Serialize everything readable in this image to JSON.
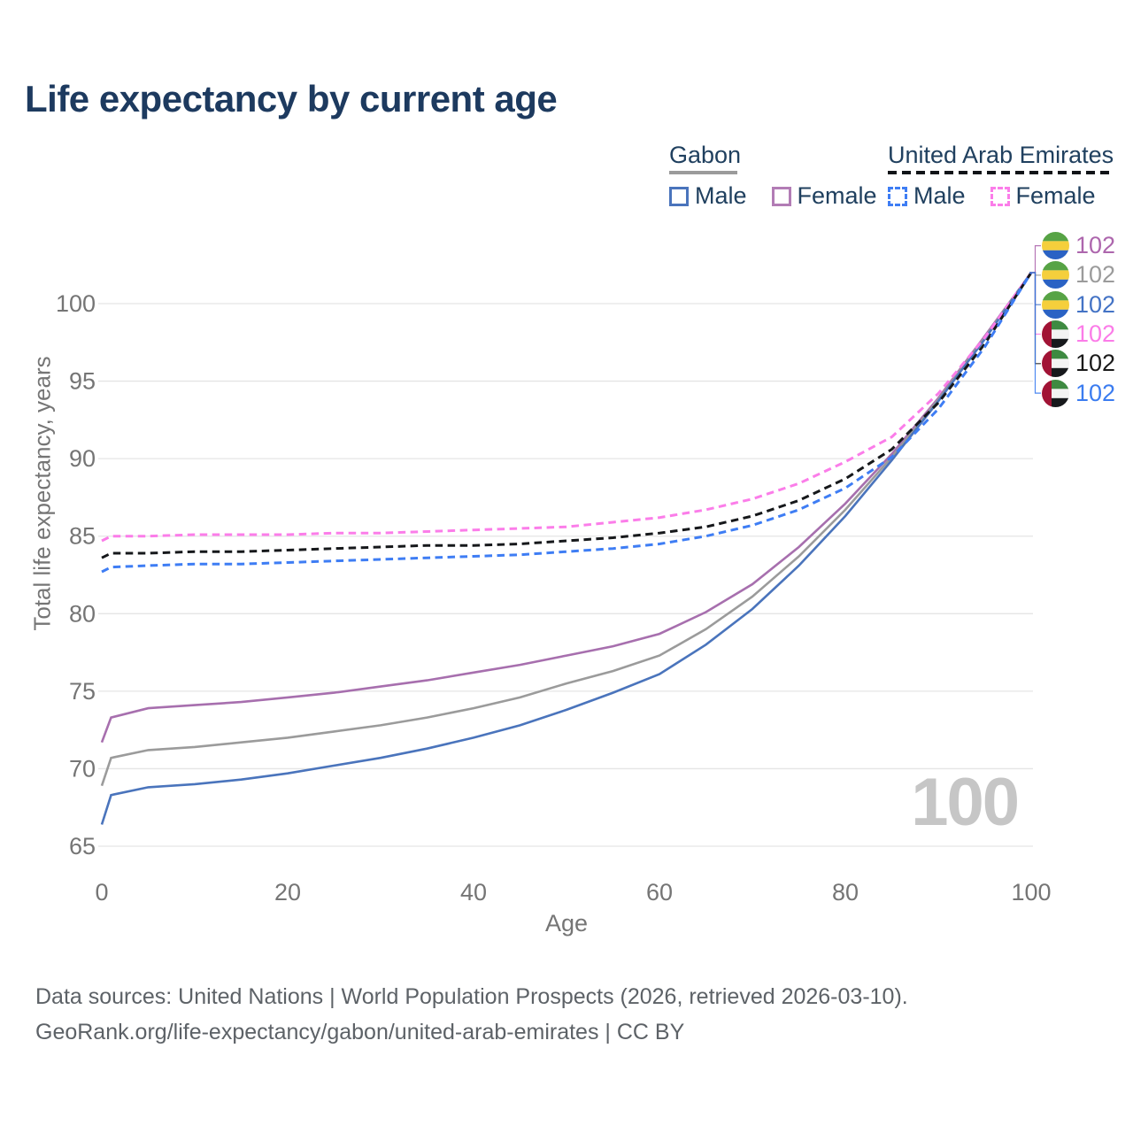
{
  "title": "Life expectancy by current age",
  "legend": {
    "groups": [
      {
        "title": "Gabon",
        "line_style": "solid",
        "underline_color": "#9b9b9b",
        "items": [
          {
            "label": "Male",
            "color": "#4a74bc",
            "style": "solid"
          },
          {
            "label": "Female",
            "color": "#b27cb5",
            "style": "solid"
          }
        ]
      },
      {
        "title": "United Arab Emirates",
        "line_style": "dashed",
        "underline_color": "#111418",
        "items": [
          {
            "label": "Male",
            "color": "#3e7df4",
            "style": "dashed"
          },
          {
            "label": "Female",
            "color": "#fb7de9",
            "style": "dashed"
          }
        ]
      }
    ]
  },
  "watermark": {
    "value": "100"
  },
  "right_labels": [
    {
      "series": "gabon-female",
      "flag": "gabon",
      "value": "102",
      "color": "#ad66ad"
    },
    {
      "series": "gabon-total",
      "flag": "gabon",
      "value": "102",
      "color": "#9b9b9b"
    },
    {
      "series": "gabon-male",
      "flag": "gabon",
      "value": "102",
      "color": "#4473c5"
    },
    {
      "series": "uae-female",
      "flag": "uae",
      "value": "102",
      "color": "#fb7ce8"
    },
    {
      "series": "uae-total",
      "flag": "uae",
      "value": "102",
      "color": "#1a1a1a"
    },
    {
      "series": "uae-male",
      "flag": "uae",
      "value": "102",
      "color": "#3b7cf0"
    }
  ],
  "flag_colors": {
    "gabon": {
      "green": "#57a345",
      "yellow": "#f5cf3c",
      "blue": "#2a62c4"
    },
    "uae": {
      "red": "#a11335",
      "green": "#3e8a41",
      "white": "#f3f3f3",
      "black": "#17191c"
    }
  },
  "grid_color": "#e5e5e5",
  "axis_text_color": "#757575",
  "chart_data": {
    "type": "line",
    "title": "Life expectancy by current age",
    "xlabel": "Age",
    "ylabel": "Total life expectancy, years",
    "x_ticks": [
      0,
      20,
      40,
      60,
      80,
      100
    ],
    "y_ticks": [
      65,
      70,
      75,
      80,
      85,
      90,
      95,
      100
    ],
    "xlim": [
      0,
      100
    ],
    "ylim": [
      64.5,
      103
    ],
    "grid": "horizontal-only",
    "legend_position": "top-right",
    "x": [
      0,
      1,
      5,
      10,
      15,
      20,
      25,
      30,
      35,
      40,
      45,
      50,
      55,
      60,
      65,
      70,
      75,
      80,
      85,
      90,
      95,
      100
    ],
    "series": [
      {
        "id": "gabon-female",
        "name": "Gabon Female",
        "country": "Gabon",
        "sex": "Female",
        "style": "solid",
        "color": "#a76fae",
        "width": 2.6,
        "end_value": 102,
        "values": [
          71.7,
          73.3,
          73.9,
          74.1,
          74.3,
          74.6,
          74.9,
          75.3,
          75.7,
          76.2,
          76.7,
          77.3,
          77.9,
          78.7,
          80.1,
          81.9,
          84.3,
          87.1,
          90.3,
          93.9,
          97.9,
          102
        ]
      },
      {
        "id": "gabon-total",
        "name": "Gabon Total",
        "country": "Gabon",
        "sex": "Both",
        "style": "solid",
        "color": "#9b9b9b",
        "width": 2.6,
        "end_value": 102,
        "values": [
          68.9,
          70.7,
          71.2,
          71.4,
          71.7,
          72.0,
          72.4,
          72.8,
          73.3,
          73.9,
          74.6,
          75.5,
          76.3,
          77.3,
          79.0,
          81.1,
          83.7,
          86.7,
          90.1,
          93.8,
          97.8,
          102
        ]
      },
      {
        "id": "gabon-male",
        "name": "Gabon Male",
        "country": "Gabon",
        "sex": "Male",
        "style": "solid",
        "color": "#4a74bc",
        "width": 2.6,
        "end_value": 102,
        "values": [
          66.4,
          68.3,
          68.8,
          69.0,
          69.3,
          69.7,
          70.2,
          70.7,
          71.3,
          72.0,
          72.8,
          73.8,
          74.9,
          76.1,
          78.0,
          80.3,
          83.1,
          86.3,
          89.9,
          93.7,
          97.7,
          102
        ]
      },
      {
        "id": "uae-female",
        "name": "United Arab Emirates Female",
        "country": "United Arab Emirates",
        "sex": "Female",
        "style": "dashed",
        "color": "#fb7de9",
        "width": 3,
        "end_value": 102,
        "values": [
          84.7,
          85.0,
          85.0,
          85.1,
          85.1,
          85.1,
          85.2,
          85.2,
          85.3,
          85.4,
          85.5,
          85.6,
          85.9,
          86.2,
          86.7,
          87.4,
          88.4,
          89.8,
          91.4,
          94.2,
          97.8,
          102
        ]
      },
      {
        "id": "uae-total",
        "name": "United Arab Emirates Total",
        "country": "United Arab Emirates",
        "sex": "Both",
        "style": "dashed",
        "color": "#16181b",
        "width": 3,
        "end_value": 102,
        "values": [
          83.6,
          83.9,
          83.9,
          84.0,
          84.0,
          84.1,
          84.2,
          84.3,
          84.4,
          84.4,
          84.5,
          84.7,
          84.9,
          85.2,
          85.6,
          86.3,
          87.3,
          88.7,
          90.6,
          93.6,
          97.4,
          102
        ]
      },
      {
        "id": "uae-male",
        "name": "United Arab Emirates Male",
        "country": "United Arab Emirates",
        "sex": "Male",
        "style": "dashed",
        "color": "#3e7df4",
        "width": 3,
        "end_value": 102,
        "values": [
          82.7,
          83.0,
          83.1,
          83.2,
          83.2,
          83.3,
          83.4,
          83.5,
          83.6,
          83.7,
          83.8,
          84.0,
          84.2,
          84.5,
          85.0,
          85.7,
          86.7,
          88.1,
          90.1,
          93.2,
          97.2,
          102
        ]
      }
    ]
  },
  "footer": {
    "line1": "Data sources: United Nations | World Population Prospects (2026, retrieved 2026-03-10).",
    "line2": "GeoRank.org/life-expectancy/gabon/united-arab-emirates | CC BY"
  }
}
